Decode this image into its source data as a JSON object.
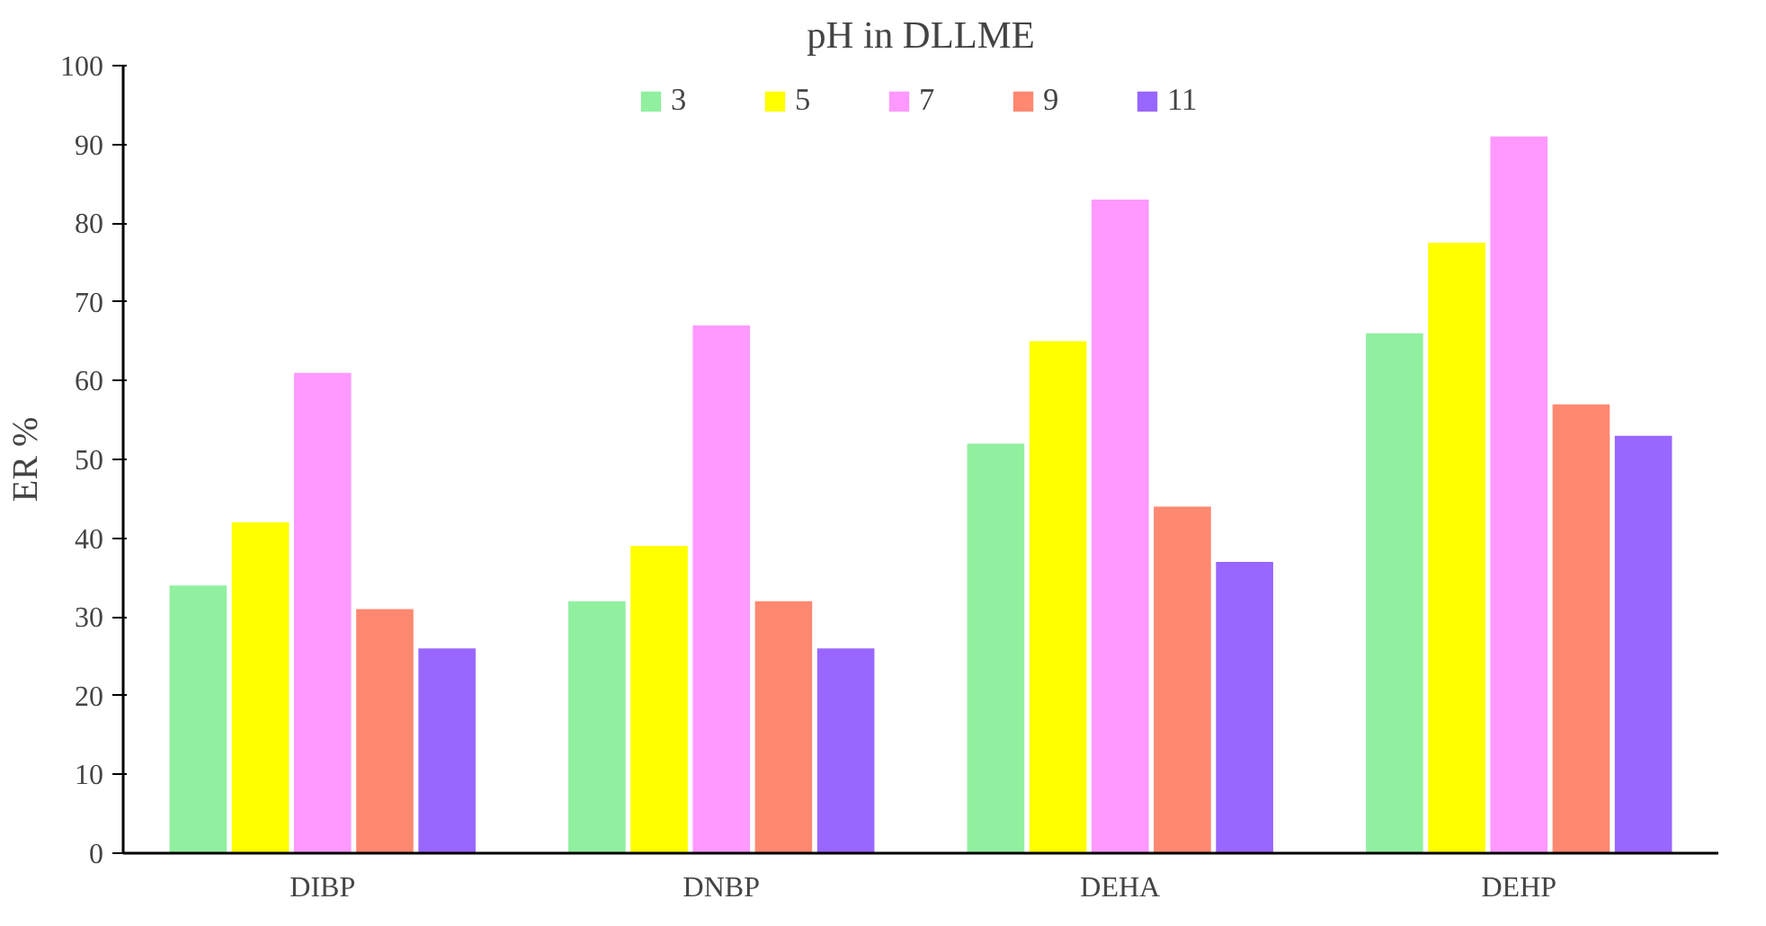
{
  "chart_data": {
    "type": "bar",
    "title": "pH in DLLME",
    "ylabel": "ER %",
    "categories": [
      "DIBP",
      "DNBP",
      "DEHA",
      "DEHP"
    ],
    "series": [
      {
        "name": "3",
        "color": "#90f0a0",
        "values": [
          34,
          32,
          52,
          66
        ]
      },
      {
        "name": "5",
        "color": "#ffff00",
        "values": [
          42,
          39,
          65,
          77.5
        ]
      },
      {
        "name": "7",
        "color": "#ff99ff",
        "values": [
          61,
          67,
          83,
          91
        ]
      },
      {
        "name": "9",
        "color": "#ff8870",
        "values": [
          31,
          32,
          44,
          57
        ]
      },
      {
        "name": "11",
        "color": "#9966ff",
        "values": [
          26,
          26,
          37,
          53
        ]
      }
    ],
    "ylim": [
      0,
      100
    ],
    "yticks": [
      0,
      10,
      20,
      30,
      40,
      50,
      60,
      70,
      80,
      90,
      100
    ],
    "grid": false,
    "legend": "top"
  }
}
